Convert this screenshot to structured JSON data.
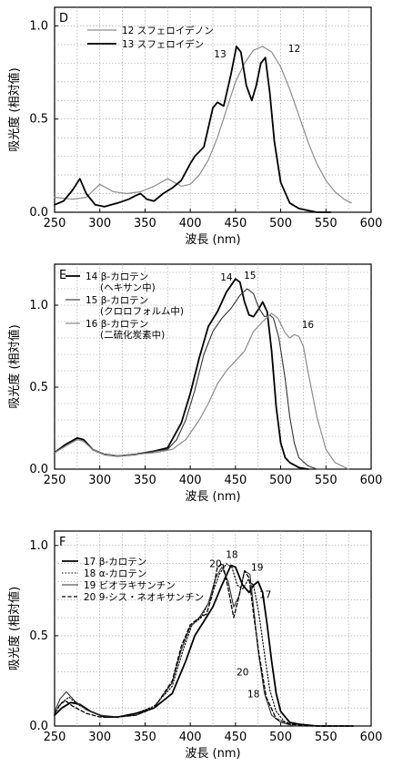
{
  "chart_data": [
    {
      "panel": "D",
      "type": "line",
      "xlabel": "波長 (nm)",
      "ylabel": "吸光度 (相対値)",
      "xlim": [
        250,
        600
      ],
      "ylim": [
        0,
        1.1
      ],
      "xticks": [
        250,
        300,
        350,
        400,
        450,
        500,
        550,
        600
      ],
      "yticks": [
        0.0,
        0.5,
        1.0
      ],
      "ytick_labels": [
        "0.0",
        "0.5",
        "1.0"
      ],
      "grid": true,
      "legend_position": "top-left",
      "series": [
        {
          "name": "12 スフェロイデノン",
          "color": "#8c8c8c",
          "width": 1.2,
          "dash": "",
          "x": [
            250,
            270,
            285,
            300,
            315,
            330,
            345,
            360,
            375,
            390,
            400,
            410,
            420,
            430,
            440,
            450,
            460,
            470,
            480,
            490,
            500,
            510,
            520,
            530,
            540,
            550,
            560,
            570,
            578
          ],
          "y": [
            0.08,
            0.07,
            0.08,
            0.15,
            0.11,
            0.1,
            0.11,
            0.14,
            0.18,
            0.14,
            0.15,
            0.2,
            0.28,
            0.4,
            0.55,
            0.7,
            0.8,
            0.87,
            0.89,
            0.86,
            0.78,
            0.66,
            0.52,
            0.38,
            0.26,
            0.17,
            0.11,
            0.07,
            0.05
          ]
        },
        {
          "name": "13 スフェロイデン",
          "color": "#000000",
          "width": 1.8,
          "dash": "",
          "x": [
            250,
            260,
            270,
            278,
            285,
            295,
            305,
            320,
            332,
            340,
            345,
            352,
            360,
            370,
            380,
            390,
            400,
            405,
            415,
            425,
            430,
            437,
            445,
            451,
            456,
            462,
            468,
            473,
            478,
            483,
            488,
            493,
            500,
            510,
            520,
            530,
            540,
            550,
            555
          ],
          "y": [
            0.04,
            0.06,
            0.12,
            0.18,
            0.1,
            0.04,
            0.03,
            0.05,
            0.07,
            0.09,
            0.1,
            0.07,
            0.06,
            0.1,
            0.13,
            0.17,
            0.26,
            0.3,
            0.35,
            0.56,
            0.59,
            0.57,
            0.74,
            0.89,
            0.86,
            0.68,
            0.6,
            0.68,
            0.8,
            0.83,
            0.64,
            0.38,
            0.16,
            0.05,
            0.02,
            0.01,
            0.0,
            0.0,
            0.0
          ]
        }
      ],
      "annotations": [
        {
          "text": "13",
          "x": 433,
          "y": 0.83
        },
        {
          "text": "12",
          "x": 515,
          "y": 0.86
        }
      ]
    },
    {
      "panel": "E",
      "type": "line",
      "xlabel": "波長 (nm)",
      "ylabel": "吸光度 (相対値)",
      "xlim": [
        250,
        600
      ],
      "ylim": [
        0,
        1.25
      ],
      "xticks": [
        250,
        300,
        350,
        400,
        450,
        500,
        550,
        600
      ],
      "yticks": [
        0.0,
        0.5,
        1.0
      ],
      "ytick_labels": [
        "0.0",
        "0.5",
        "1.0"
      ],
      "grid": true,
      "legend_position": "top-left",
      "series": [
        {
          "name": "14 β-カロテン",
          "note": "(ヘキサン中)",
          "color": "#000000",
          "width": 1.8,
          "dash": "",
          "x": [
            250,
            262,
            275,
            282,
            292,
            305,
            320,
            340,
            360,
            375,
            390,
            400,
            410,
            420,
            430,
            440,
            450,
            455,
            460,
            465,
            470,
            476,
            480,
            485,
            490,
            495,
            500,
            505,
            510,
            520,
            530
          ],
          "y": [
            0.1,
            0.15,
            0.19,
            0.18,
            0.12,
            0.09,
            0.08,
            0.09,
            0.11,
            0.13,
            0.28,
            0.46,
            0.68,
            0.87,
            0.96,
            1.08,
            1.16,
            1.14,
            1.02,
            0.94,
            0.93,
            0.98,
            1.02,
            0.96,
            0.72,
            0.38,
            0.16,
            0.07,
            0.04,
            0.01,
            0.0
          ]
        },
        {
          "name": "15 β-カロテン",
          "note": "(クロロフォルム中)",
          "color": "#333333",
          "width": 1.1,
          "dash": "",
          "x": [
            250,
            262,
            275,
            282,
            292,
            305,
            320,
            340,
            360,
            375,
            385,
            395,
            405,
            415,
            425,
            435,
            445,
            455,
            463,
            470,
            476,
            482,
            488,
            492,
            498,
            505,
            510,
            515,
            520,
            530,
            540,
            550
          ],
          "y": [
            0.1,
            0.14,
            0.18,
            0.17,
            0.12,
            0.09,
            0.08,
            0.09,
            0.11,
            0.12,
            0.18,
            0.3,
            0.48,
            0.7,
            0.84,
            0.92,
            0.98,
            1.06,
            1.1,
            1.07,
            0.98,
            0.93,
            0.94,
            0.92,
            0.8,
            0.55,
            0.32,
            0.16,
            0.07,
            0.02,
            0.0,
            0.0
          ]
        },
        {
          "name": "16 β-カロテン",
          "note": "(二硫化炭素中)",
          "color": "#8c8c8c",
          "width": 1.2,
          "dash": "",
          "x": [
            250,
            262,
            275,
            282,
            292,
            305,
            320,
            340,
            360,
            380,
            395,
            410,
            420,
            430,
            440,
            450,
            460,
            470,
            480,
            490,
            497,
            505,
            510,
            515,
            520,
            525,
            530,
            540,
            550,
            560,
            575
          ],
          "y": [
            0.1,
            0.14,
            0.18,
            0.17,
            0.12,
            0.09,
            0.08,
            0.09,
            0.1,
            0.12,
            0.18,
            0.3,
            0.4,
            0.52,
            0.6,
            0.66,
            0.72,
            0.84,
            0.9,
            0.95,
            0.92,
            0.83,
            0.8,
            0.82,
            0.81,
            0.75,
            0.6,
            0.32,
            0.12,
            0.04,
            0.0
          ]
        }
      ],
      "annotations": [
        {
          "text": "14",
          "x": 440,
          "y": 1.15
        },
        {
          "text": "15",
          "x": 466,
          "y": 1.16
        },
        {
          "text": "16",
          "x": 530,
          "y": 0.86
        }
      ]
    },
    {
      "panel": "F",
      "type": "line",
      "xlabel": "波長 (nm)",
      "ylabel": "吸光度 (相対値)",
      "xlim": [
        250,
        600
      ],
      "ylim": [
        0,
        1.08
      ],
      "xticks": [
        250,
        300,
        350,
        400,
        450,
        500,
        550,
        600
      ],
      "yticks": [
        0.0,
        0.5,
        1.0
      ],
      "ytick_labels": [
        "0.0",
        "0.5",
        "1.0"
      ],
      "grid": true,
      "legend_position": "top-left",
      "series": [
        {
          "name": "17 β-カロテン",
          "color": "#000000",
          "width": 1.8,
          "dash": "",
          "x": [
            250,
            258,
            268,
            278,
            290,
            305,
            320,
            340,
            360,
            380,
            395,
            405,
            415,
            425,
            435,
            445,
            450,
            458,
            465,
            470,
            475,
            480,
            485,
            490,
            495,
            500,
            510,
            520,
            540,
            560,
            580
          ],
          "y": [
            0.06,
            0.1,
            0.13,
            0.12,
            0.08,
            0.05,
            0.05,
            0.07,
            0.1,
            0.18,
            0.36,
            0.5,
            0.58,
            0.66,
            0.78,
            0.89,
            0.88,
            0.78,
            0.74,
            0.78,
            0.8,
            0.74,
            0.56,
            0.36,
            0.18,
            0.08,
            0.02,
            0.01,
            0.0,
            0.0,
            0.0
          ]
        },
        {
          "name": "18 α-カロテン",
          "color": "#000000",
          "width": 1.1,
          "dash": "1.5 2",
          "x": [
            250,
            258,
            266,
            275,
            290,
            305,
            320,
            340,
            360,
            380,
            392,
            402,
            412,
            422,
            432,
            440,
            446,
            452,
            458,
            464,
            470,
            476,
            482,
            488,
            495,
            505,
            520,
            540,
            560,
            580
          ],
          "y": [
            0.07,
            0.13,
            0.16,
            0.12,
            0.08,
            0.05,
            0.05,
            0.07,
            0.11,
            0.22,
            0.42,
            0.56,
            0.6,
            0.7,
            0.84,
            0.9,
            0.88,
            0.78,
            0.76,
            0.81,
            0.78,
            0.62,
            0.4,
            0.2,
            0.08,
            0.02,
            0.01,
            0.0,
            0.0,
            0.0
          ]
        },
        {
          "name": "19 ビオラキサンチン",
          "color": "#333333",
          "width": 1.1,
          "dash": "",
          "x": [
            250,
            256,
            263,
            272,
            285,
            300,
            320,
            340,
            360,
            380,
            390,
            400,
            410,
            420,
            428,
            435,
            442,
            448,
            454,
            460,
            466,
            470,
            475,
            482,
            490,
            500,
            515,
            540,
            560,
            580
          ],
          "y": [
            0.08,
            0.15,
            0.19,
            0.14,
            0.09,
            0.06,
            0.05,
            0.06,
            0.1,
            0.24,
            0.42,
            0.55,
            0.6,
            0.68,
            0.82,
            0.88,
            0.8,
            0.66,
            0.72,
            0.86,
            0.84,
            0.66,
            0.42,
            0.18,
            0.06,
            0.02,
            0.0,
            0.0,
            0.0,
            0.0
          ]
        },
        {
          "name": "20 9-シス・ネオキサンチン",
          "color": "#000000",
          "width": 1.3,
          "dash": "4 2.5",
          "x": [
            250,
            256,
            262,
            270,
            285,
            300,
            320,
            340,
            360,
            380,
            390,
            400,
            410,
            418,
            424,
            430,
            436,
            442,
            448,
            454,
            460,
            465,
            470,
            476,
            484,
            495,
            510,
            530,
            560,
            580
          ],
          "y": [
            0.07,
            0.12,
            0.14,
            0.11,
            0.07,
            0.05,
            0.05,
            0.06,
            0.1,
            0.25,
            0.44,
            0.56,
            0.6,
            0.62,
            0.72,
            0.88,
            0.9,
            0.76,
            0.6,
            0.72,
            0.86,
            0.82,
            0.62,
            0.4,
            0.16,
            0.04,
            0.01,
            0.0,
            0.0,
            0.0
          ]
        }
      ],
      "annotations": [
        {
          "text": "20",
          "x": 428,
          "y": 0.88
        },
        {
          "text": "18",
          "x": 446,
          "y": 0.93
        },
        {
          "text": "19",
          "x": 474,
          "y": 0.86
        },
        {
          "text": "17",
          "x": 483,
          "y": 0.71
        },
        {
          "text": "20",
          "x": 458,
          "y": 0.28
        },
        {
          "text": "18",
          "x": 470,
          "y": 0.16
        }
      ]
    }
  ]
}
